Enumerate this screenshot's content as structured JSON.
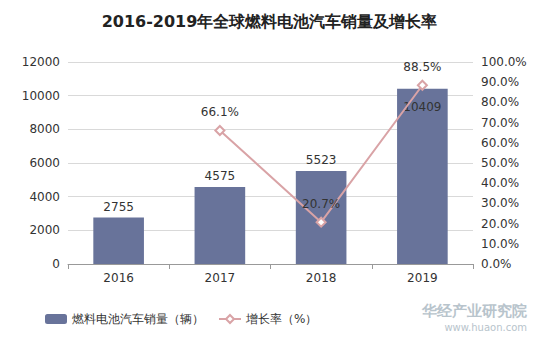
{
  "chart_data": {
    "type": "bar",
    "title": "2016-2019年全球燃料电池汽车销量及增长率",
    "categories": [
      "2016",
      "2017",
      "2018",
      "2019"
    ],
    "series": [
      {
        "name": "燃料电池汽车销量（辆）",
        "type": "bar",
        "color": "#68739a",
        "values": [
          2755,
          4575,
          5523,
          10409
        ]
      },
      {
        "name": "增长率（%）",
        "type": "line",
        "axis": "y2",
        "color": "#d9a3a6",
        "marker": "diamond",
        "values": [
          null,
          66.1,
          20.7,
          88.5
        ],
        "value_labels": [
          null,
          "66.1%",
          "20.7%",
          "88.5%"
        ]
      }
    ],
    "ylim": [
      0,
      12000
    ],
    "yticks": [
      0,
      2000,
      4000,
      6000,
      8000,
      10000,
      12000
    ],
    "y2lim": [
      0,
      100
    ],
    "y2ticks": [
      {
        "value": 0,
        "label": "0.0%"
      },
      {
        "value": 10,
        "label": "10.0%"
      },
      {
        "value": 20,
        "label": "20.0%"
      },
      {
        "value": 30,
        "label": "30.0%"
      },
      {
        "value": 40,
        "label": "40.0%"
      },
      {
        "value": 50,
        "label": "50.0%"
      },
      {
        "value": 60,
        "label": "60.0%"
      },
      {
        "value": 70,
        "label": "70.0%"
      },
      {
        "value": 80,
        "label": "80.0%"
      },
      {
        "value": 90,
        "label": "90.0%"
      },
      {
        "value": 100,
        "label": "100.0%"
      }
    ],
    "grid": true,
    "legend": "bottom",
    "data_labels": true,
    "annotations": [
      "华经产业研究院",
      "www.huaon.com"
    ]
  }
}
